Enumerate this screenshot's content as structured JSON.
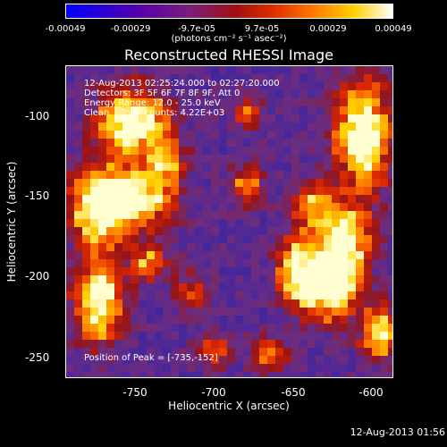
{
  "colorbar": {
    "ticks": [
      "-0.00049",
      "-0.00029",
      "-9.7e-05",
      "9.7e-05",
      "0.00029",
      "0.00049"
    ],
    "units": "(photons cm⁻² s⁻¹ asec⁻²)"
  },
  "chart_data": {
    "type": "heatmap",
    "title": "Reconstructed RHESSI Image",
    "xlabel": "Heliocentric X (arcsec)",
    "ylabel": "Heliocentric Y (arcsec)",
    "xlim": [
      -792,
      -597
    ],
    "ylim": [
      -262,
      -77
    ],
    "xticks": [
      "-750",
      "-700",
      "-650",
      "-600"
    ],
    "yticks": [
      "-100",
      "-150",
      "-200",
      "-250"
    ],
    "xtick_values": [
      -750,
      -700,
      -650,
      -600
    ],
    "ytick_values": [
      -100,
      -150,
      -200,
      -250
    ],
    "value_range": [
      -0.00049,
      0.00049
    ],
    "colormap": "blue-purple-red-yellow-white",
    "annotations": {
      "time": "12-Aug-2013 02:25:24.000 to 02:27:20.000",
      "detectors": "Detectors: 3F 5F 6F 7F 8F 9F, Att 0",
      "energy": "Energy Range: 12.0 - 25.0 keV",
      "method": "Clean    Total counts: 4.22E+03",
      "peak": "Position of Peak = [-735,-152]"
    }
  },
  "footer": {
    "timestamp": "12-Aug-2013 01:56"
  }
}
